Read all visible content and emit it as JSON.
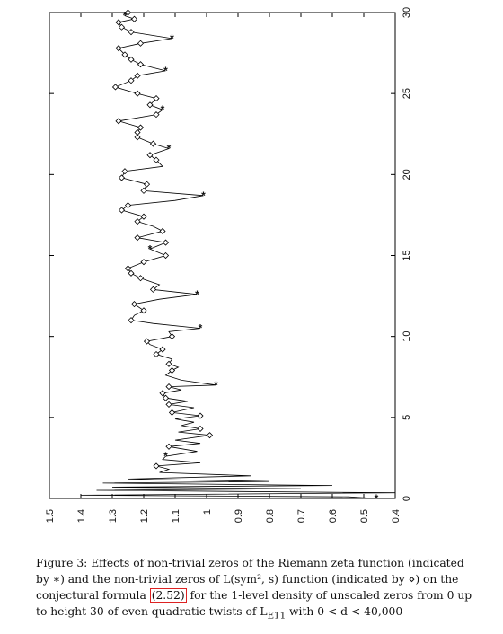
{
  "chart_data": {
    "type": "line",
    "rotated": "90deg-counterclockwise (height axis runs vertically, density runs horizontally, decreasing left to right)",
    "xlabel": "",
    "ylabel": "",
    "xlim": [
      0,
      30
    ],
    "ylim": [
      0.4,
      1.5
    ],
    "x_ticks": [
      "0",
      "5",
      "10",
      "15",
      "20",
      "25",
      "30"
    ],
    "y_ticks": [
      "1.5",
      "1.4",
      "1.3",
      "1.2",
      "1.1",
      "1",
      "0.9",
      "0.8",
      "0.7",
      "0.6",
      "0.5",
      "0.4"
    ],
    "series": [
      {
        "values": [
          [
            0.0,
            0.46
          ],
          [
            0.1,
            0.55
          ],
          [
            0.2,
            1.4
          ],
          [
            0.35,
            0.4
          ],
          [
            0.5,
            1.35
          ],
          [
            0.6,
            0.7
          ],
          [
            0.7,
            1.3
          ],
          [
            0.8,
            0.6
          ],
          [
            0.95,
            1.33
          ],
          [
            1.05,
            0.8
          ],
          [
            1.2,
            1.25
          ],
          [
            1.4,
            0.86
          ],
          [
            1.6,
            1.15
          ],
          [
            1.8,
            1.12
          ],
          [
            2.0,
            1.16
          ],
          [
            2.2,
            1.02
          ],
          [
            2.4,
            1.14
          ],
          [
            2.6,
            1.13
          ],
          [
            2.9,
            1.03
          ],
          [
            3.2,
            1.12
          ],
          [
            3.4,
            1.02
          ],
          [
            3.6,
            1.1
          ],
          [
            3.9,
            0.99
          ],
          [
            4.1,
            1.09
          ],
          [
            4.3,
            1.02
          ],
          [
            4.5,
            1.08
          ],
          [
            4.7,
            1.04
          ],
          [
            4.9,
            1.1
          ],
          [
            5.1,
            1.02
          ],
          [
            5.3,
            1.11
          ],
          [
            5.6,
            1.04
          ],
          [
            5.8,
            1.12
          ],
          [
            6.0,
            1.06
          ],
          [
            6.2,
            1.13
          ],
          [
            6.5,
            1.14
          ],
          [
            6.7,
            1.08
          ],
          [
            6.9,
            1.12
          ],
          [
            7.0,
            0.97
          ],
          [
            7.3,
            1.08
          ],
          [
            7.6,
            1.13
          ],
          [
            7.9,
            1.11
          ],
          [
            8.1,
            1.09
          ],
          [
            8.3,
            1.12
          ],
          [
            8.6,
            1.11
          ],
          [
            8.9,
            1.16
          ],
          [
            9.2,
            1.14
          ],
          [
            9.5,
            1.18
          ],
          [
            9.7,
            1.19
          ],
          [
            10.0,
            1.11
          ],
          [
            10.3,
            1.12
          ],
          [
            10.5,
            1.02
          ],
          [
            10.8,
            1.17
          ],
          [
            11.0,
            1.24
          ],
          [
            11.3,
            1.23
          ],
          [
            11.6,
            1.2
          ],
          [
            12.0,
            1.23
          ],
          [
            12.3,
            1.15
          ],
          [
            12.6,
            1.03
          ],
          [
            12.9,
            1.17
          ],
          [
            13.2,
            1.15
          ],
          [
            13.6,
            1.21
          ],
          [
            13.9,
            1.24
          ],
          [
            14.2,
            1.25
          ],
          [
            14.6,
            1.2
          ],
          [
            15.0,
            1.13
          ],
          [
            15.4,
            1.18
          ],
          [
            15.8,
            1.13
          ],
          [
            16.1,
            1.22
          ],
          [
            16.5,
            1.14
          ],
          [
            16.8,
            1.17
          ],
          [
            17.1,
            1.22
          ],
          [
            17.4,
            1.2
          ],
          [
            17.8,
            1.27
          ],
          [
            18.1,
            1.25
          ],
          [
            18.4,
            1.1
          ],
          [
            18.7,
            1.01
          ],
          [
            19.0,
            1.2
          ],
          [
            19.4,
            1.19
          ],
          [
            19.8,
            1.27
          ],
          [
            20.2,
            1.26
          ],
          [
            20.5,
            1.14
          ],
          [
            20.9,
            1.16
          ],
          [
            21.2,
            1.18
          ],
          [
            21.6,
            1.12
          ],
          [
            21.9,
            1.17
          ],
          [
            22.3,
            1.22
          ],
          [
            22.6,
            1.22
          ],
          [
            22.9,
            1.21
          ],
          [
            23.3,
            1.28
          ],
          [
            23.7,
            1.16
          ],
          [
            24.0,
            1.14
          ],
          [
            24.3,
            1.18
          ],
          [
            24.7,
            1.16
          ],
          [
            25.0,
            1.22
          ],
          [
            25.4,
            1.29
          ],
          [
            25.8,
            1.24
          ],
          [
            26.1,
            1.22
          ],
          [
            26.4,
            1.13
          ],
          [
            26.8,
            1.21
          ],
          [
            27.1,
            1.24
          ],
          [
            27.4,
            1.26
          ],
          [
            27.8,
            1.28
          ],
          [
            28.1,
            1.21
          ],
          [
            28.4,
            1.11
          ],
          [
            28.8,
            1.24
          ],
          [
            29.1,
            1.27
          ],
          [
            29.4,
            1.28
          ],
          [
            29.6,
            1.23
          ],
          [
            29.8,
            1.26
          ],
          [
            30.0,
            1.25
          ]
        ]
      }
    ],
    "markers": {
      "star": [
        0.0,
        2.6,
        7.0,
        10.5,
        12.6,
        15.4,
        18.7,
        21.6,
        24.0,
        26.4,
        28.4,
        29.8
      ],
      "diamond": [
        2.0,
        3.2,
        3.9,
        4.3,
        5.1,
        5.3,
        5.8,
        6.2,
        6.5,
        6.9,
        7.9,
        8.3,
        8.9,
        9.2,
        9.7,
        10.0,
        11.0,
        11.6,
        12.0,
        12.9,
        13.6,
        13.9,
        14.2,
        14.6,
        15.0,
        15.8,
        16.1,
        16.5,
        17.1,
        17.4,
        17.8,
        18.1,
        19.0,
        19.4,
        19.8,
        20.2,
        20.9,
        21.2,
        21.9,
        22.3,
        22.6,
        22.9,
        23.3,
        23.7,
        24.3,
        24.7,
        25.0,
        25.4,
        25.8,
        26.1,
        26.8,
        27.1,
        27.4,
        27.8,
        28.1,
        28.8,
        29.1,
        29.4,
        29.6,
        30.0
      ]
    }
  },
  "caption": {
    "lead": "Figure 3: Effects of non-trivial zeros of the Riemann zeta function (indicated by ∗) and the non-trivial zeros of L(sym², s) function (indicated by ⋄) on the conjectural formula ",
    "ref": "(2.52)",
    "tail": " for the 1-level density of unscaled zeros from 0 up to height 30 of even quadratic twists of L",
    "sub": "E11",
    "end": " with 0 < d < 40,000"
  }
}
